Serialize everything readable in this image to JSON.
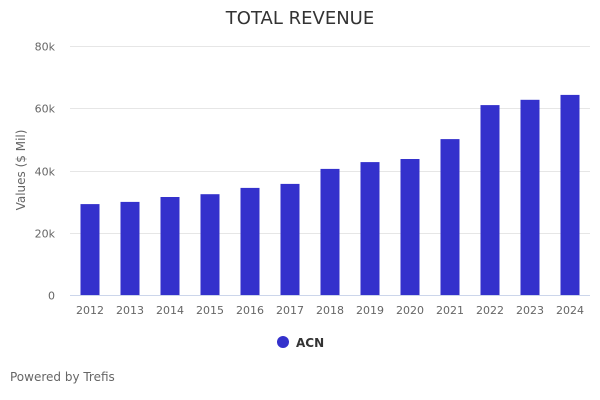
{
  "chart_data": {
    "type": "bar",
    "title": "TOTAL REVENUE",
    "xlabel": "",
    "ylabel": "Values ($ Mil)",
    "ylim": [
      0,
      80000
    ],
    "yticks": [
      0,
      20000,
      40000,
      60000,
      80000
    ],
    "ytick_labels": [
      "0",
      "20k",
      "40k",
      "60k",
      "80k"
    ],
    "grid": true,
    "categories": [
      "2012",
      "2013",
      "2014",
      "2015",
      "2016",
      "2017",
      "2018",
      "2019",
      "2020",
      "2021",
      "2022",
      "2023",
      "2024"
    ],
    "series": [
      {
        "name": "ACN",
        "color": "#3431cc",
        "values": [
          29200,
          29900,
          31500,
          32400,
          34400,
          35700,
          40500,
          42700,
          43700,
          50100,
          61000,
          62700,
          64300
        ]
      }
    ],
    "legend": {
      "position": "bottom-center",
      "entries": [
        "ACN"
      ]
    }
  },
  "credit": "Powered by Trefis"
}
